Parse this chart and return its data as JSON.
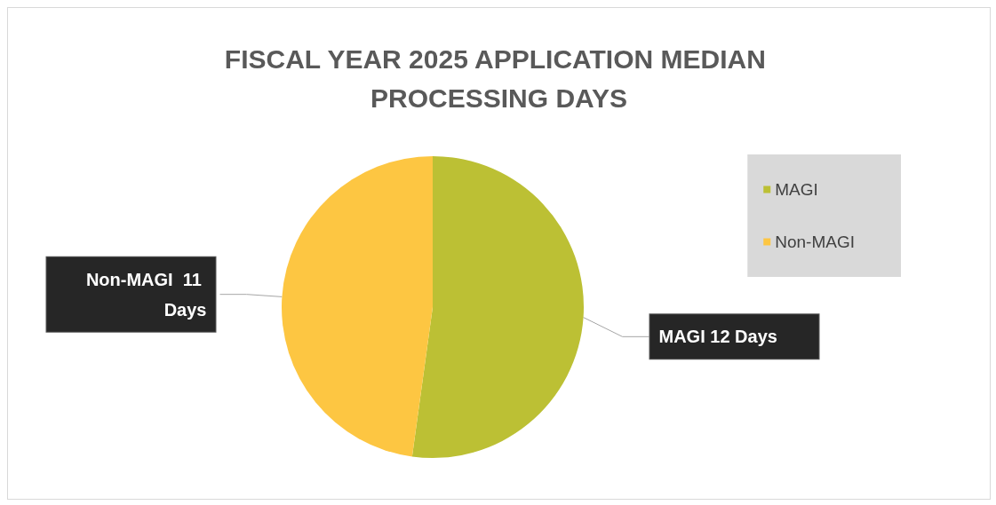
{
  "chart_data": {
    "type": "pie",
    "title": "FISCAL YEAR 2025 APPLICATION MEDIAN PROCESSING DAYS",
    "categories": [
      "MAGI",
      "Non-MAGI"
    ],
    "values": [
      12,
      11
    ],
    "colors": [
      "#bcc034",
      "#fdc642"
    ],
    "value_labels": [
      "MAGI 12 Days",
      "Non-MAGI  11 Days"
    ],
    "legend": "right"
  }
}
